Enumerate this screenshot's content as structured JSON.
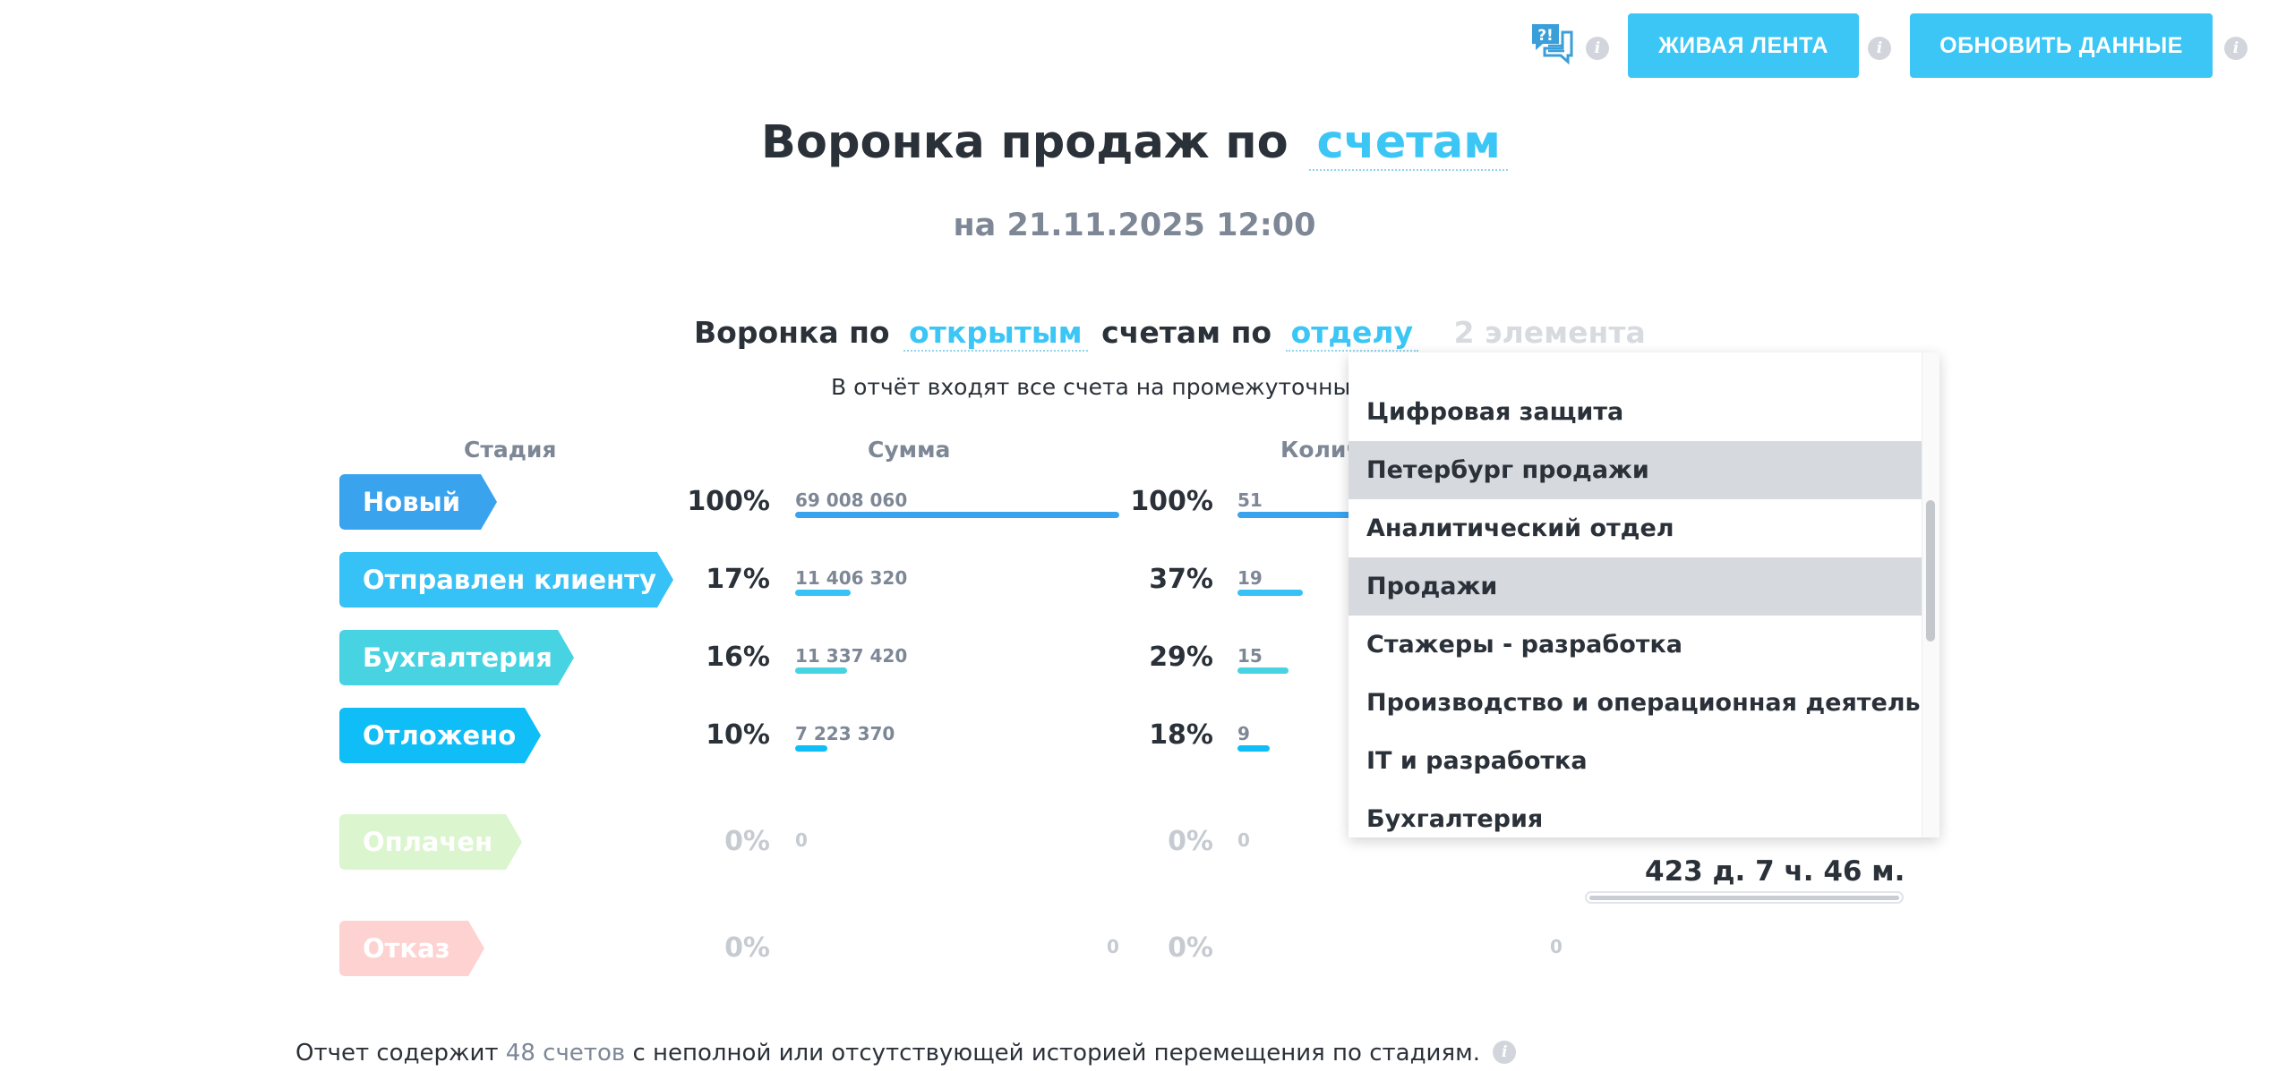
{
  "toolbar": {
    "help_icon": "question-chat-icon",
    "info_icon": "i",
    "live_feed_label": "ЖИВАЯ ЛЕНТА",
    "refresh_label": "ОБНОВИТЬ ДАННЫЕ",
    "button_color": "#3bc6f5"
  },
  "header": {
    "title_prefix": "Воронка продаж по",
    "title_link": "счетам",
    "subtitle": "на 21.11.2025 12:00"
  },
  "filter": {
    "prefix": "Воронка по",
    "state_link": "открытым",
    "middle": "счетам по",
    "group_link": "отделу",
    "selected_count": "2 элемента",
    "note": "В отчёт входят все счета на промежуточных ст"
  },
  "columns": {
    "stage": "Стадия",
    "sum": "Сумма",
    "count": "Колич"
  },
  "stages": [
    {
      "label": "Новый",
      "color": "#3aa3ee",
      "sum_pct": "100%",
      "sum_value": "69 008 060",
      "sum_fraction": 1.0,
      "count_pct": "100%",
      "count_value": "51",
      "count_fraction": 1.0
    },
    {
      "label": "Отправлен клиенту",
      "color": "#36c2f6",
      "sum_pct": "17%",
      "sum_value": "11 406 320",
      "sum_fraction": 0.17,
      "count_pct": "37%",
      "count_value": "19",
      "count_fraction": 0.37
    },
    {
      "label": "Бухгалтерия",
      "color": "#47d3e2",
      "sum_pct": "16%",
      "sum_value": "11 337 420",
      "sum_fraction": 0.16,
      "count_pct": "29%",
      "count_value": "15",
      "count_fraction": 0.29
    },
    {
      "label": "Отложено",
      "color": "#0fbdf7",
      "sum_pct": "10%",
      "sum_value": "7 223 370",
      "sum_fraction": 0.1,
      "count_pct": "18%",
      "count_value": "9",
      "count_fraction": 0.18
    },
    {
      "label": "Оплачен",
      "color": "#dbf5cf",
      "sum_pct": "0%",
      "sum_value": "0",
      "sum_fraction": 0,
      "count_pct": "0%",
      "count_value": "0",
      "count_fraction": 0
    },
    {
      "label": "Отказ",
      "color": "#ffd2d2",
      "sum_pct": "0%",
      "sum_value": "0",
      "sum_fraction": 0,
      "count_pct": "0%",
      "count_value": "0",
      "count_fraction": 0
    }
  ],
  "dropdown": {
    "items": [
      {
        "label": "Цифровая защита",
        "selected": false
      },
      {
        "label": "Петербург продажи",
        "selected": true
      },
      {
        "label": "Аналитический отдел",
        "selected": false
      },
      {
        "label": "Продажи",
        "selected": true
      },
      {
        "label": "Стажеры - разработка",
        "selected": false
      },
      {
        "label": "Производство и операционная деятельность",
        "selected": false
      },
      {
        "label": "IT и разработка",
        "selected": false
      },
      {
        "label": "Бухгалтерия",
        "selected": false
      }
    ]
  },
  "duration": {
    "text": "423 д. 7 ч. 46 м."
  },
  "footer": {
    "prefix": "Отчет содержит",
    "link": "48 счетов",
    "suffix": "с неполной или отсутствующей историей перемещения по стадиям."
  }
}
